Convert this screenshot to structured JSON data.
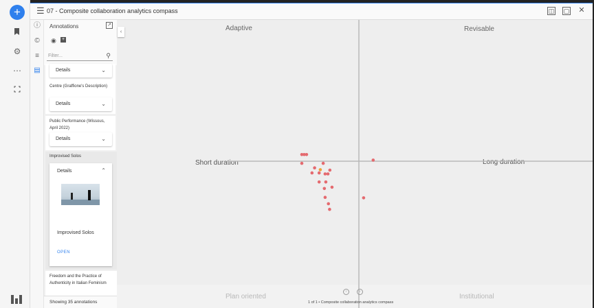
{
  "window": {
    "title": "07 - Composite collaboration analytics compass"
  },
  "rail": {
    "add_glyph": "+",
    "icons": [
      "bookmark-icon",
      "gear-icon",
      "more-icon",
      "fullscreen-icon"
    ]
  },
  "panel": {
    "heading": "Annotations",
    "filter_placeholder": "Filter...",
    "details_label": "Details",
    "open_label": "OPEN",
    "items": [
      {
        "title": "Centre (Graffione's Description)"
      },
      {
        "title": "Public Performance (Wissous, April 2022)"
      },
      {
        "title": "Improvised Solos"
      },
      {
        "title": "Freedom and the Practice of Authenticity in Italian Feminism"
      }
    ],
    "expanded_item_name": "Improvised Solos",
    "footer": "Showing 35 annotations"
  },
  "compass": {
    "quadrant_labels": {
      "top_left": "Adaptive",
      "top_right": "Revisable",
      "bottom_left": "Plan oriented",
      "bottom_right": "Institutional"
    },
    "axis_labels": {
      "left": "Short duration",
      "right": "Long duration"
    },
    "pagination": "1 of 1 • Composite collaboration analytics compass",
    "colors": {
      "point": "#e46a6f",
      "highlight": "#f0a23a"
    }
  },
  "chart_data": {
    "type": "scatter",
    "x_axis": {
      "negative": "Short duration",
      "positive": "Long duration"
    },
    "y_axis": {
      "positive": "Adaptive / Revisable",
      "negative": "Plan oriented / Institutional"
    },
    "points": [
      {
        "x": -0.24,
        "y": 0.047
      },
      {
        "x": -0.23,
        "y": 0.047
      },
      {
        "x": -0.22,
        "y": 0.047
      },
      {
        "x": -0.24,
        "y": -0.015
      },
      {
        "x": -0.15,
        "y": -0.015
      },
      {
        "x": 0.06,
        "y": 0.008
      },
      {
        "x": -0.186,
        "y": -0.047
      },
      {
        "x": -0.197,
        "y": -0.083
      },
      {
        "x": -0.167,
        "y": -0.083
      },
      {
        "x": -0.142,
        "y": -0.09
      },
      {
        "x": -0.13,
        "y": -0.09
      },
      {
        "x": -0.122,
        "y": -0.063
      },
      {
        "x": -0.167,
        "y": -0.147
      },
      {
        "x": -0.139,
        "y": -0.147
      },
      {
        "x": -0.145,
        "y": -0.193
      },
      {
        "x": -0.113,
        "y": -0.184
      },
      {
        "x": -0.142,
        "y": -0.256
      },
      {
        "x": -0.128,
        "y": -0.301
      },
      {
        "x": -0.123,
        "y": -0.341
      },
      {
        "x": 0.02,
        "y": -0.259
      },
      {
        "x": -0.162,
        "y": -0.06,
        "highlight": true
      }
    ]
  }
}
